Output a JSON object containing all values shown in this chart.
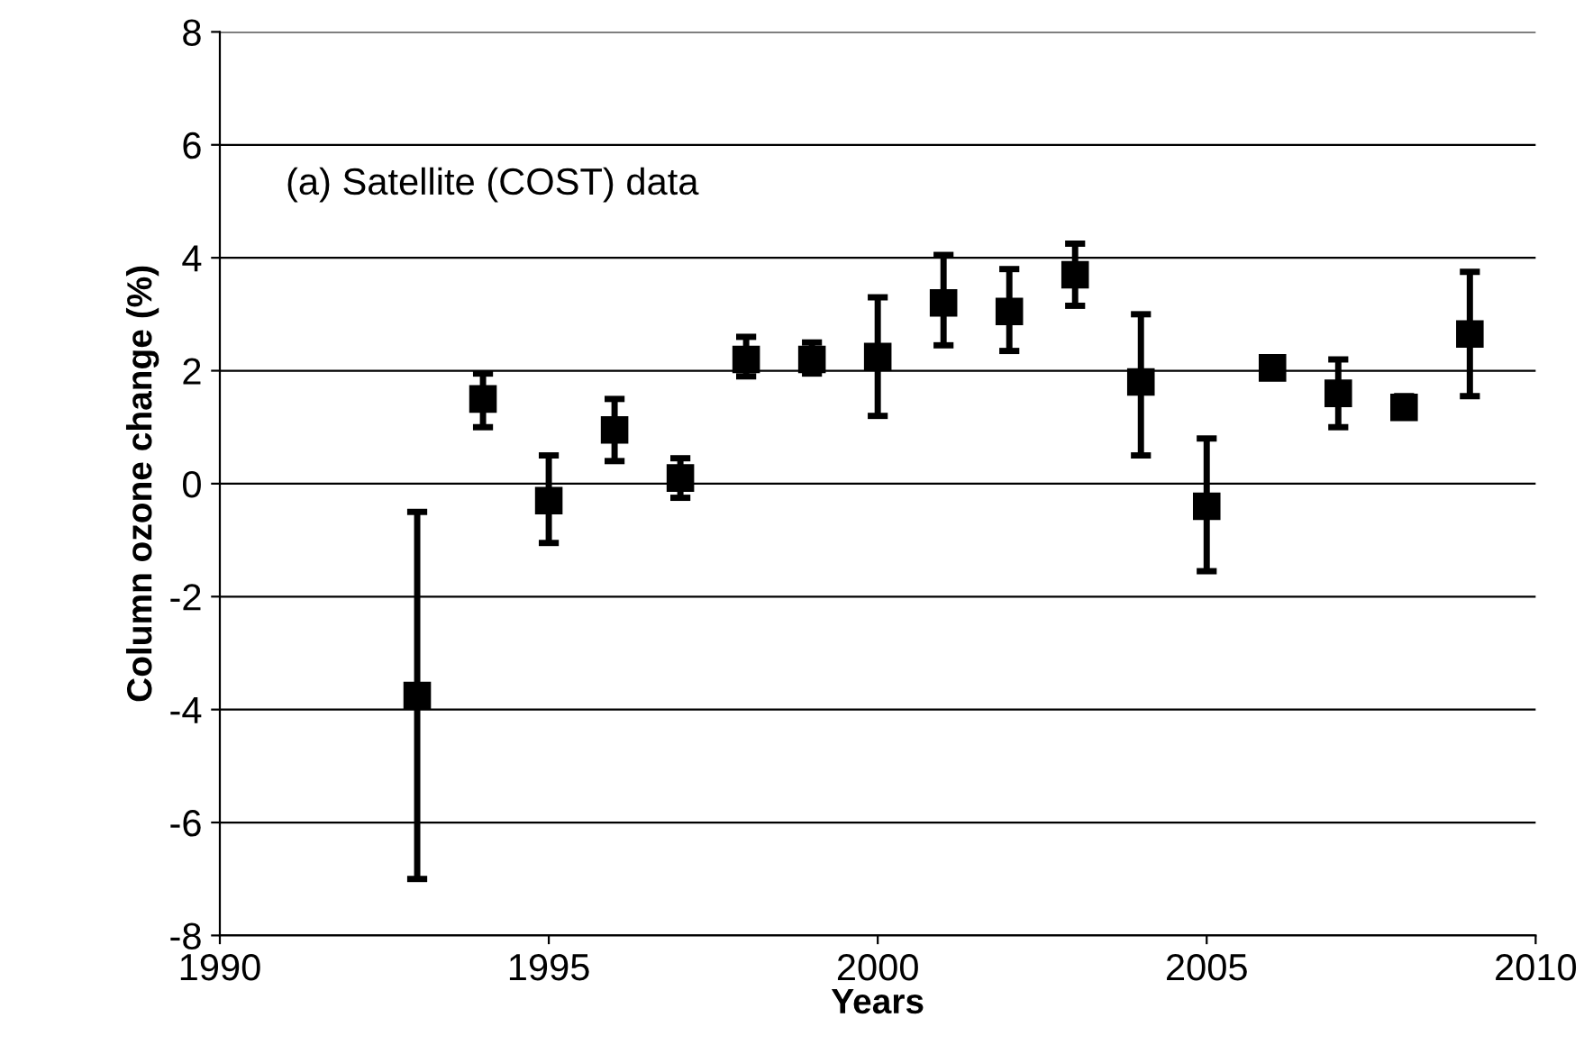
{
  "chart_data": {
    "type": "scatter",
    "xlabel": "Years",
    "ylabel": "Column ozone change (%)",
    "annotations": [
      "(a) Satellite (COST) data"
    ],
    "x": [
      1993,
      1994,
      1995,
      1996,
      1997,
      1998,
      1999,
      2000,
      2001,
      2002,
      2003,
      2004,
      2005,
      2006,
      2007,
      2008,
      2009
    ],
    "series": [
      {
        "color": "#000000",
        "values": [
          -3.75,
          1.5,
          -0.3,
          0.95,
          0.1,
          2.2,
          2.2,
          2.25,
          3.2,
          3.05,
          3.7,
          1.8,
          -0.4,
          2.05,
          1.6,
          1.35,
          2.65
        ],
        "errors": [
          [
            -7.0,
            -0.5
          ],
          [
            1.0,
            1.95
          ],
          [
            -1.05,
            0.5
          ],
          [
            0.4,
            1.5
          ],
          [
            -0.25,
            0.45
          ],
          [
            1.9,
            2.6
          ],
          [
            1.95,
            2.5
          ],
          [
            1.2,
            3.3
          ],
          [
            2.45,
            4.05
          ],
          [
            2.35,
            3.8
          ],
          [
            3.15,
            4.25
          ],
          [
            0.5,
            3.0
          ],
          [
            -1.55,
            0.8
          ],
          null,
          [
            1.0,
            2.2
          ],
          [
            1.2,
            1.55
          ],
          [
            1.55,
            3.75
          ]
        ]
      }
    ],
    "marker": "square",
    "xlim": [
      1990,
      2010
    ],
    "xticks": [
      1990,
      1995,
      2000,
      2005,
      2010
    ],
    "ylim": [
      -8,
      8
    ],
    "yticks": [
      -8,
      -6,
      -4,
      -2,
      0,
      2,
      4,
      6,
      8
    ],
    "grid": "y"
  }
}
